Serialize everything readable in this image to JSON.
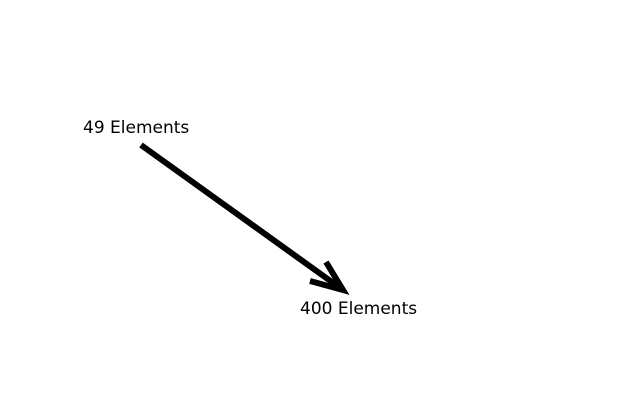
{
  "diagram": {
    "source_label": "49 Elements",
    "target_label": "400 Elements",
    "arrow_color": "#000000",
    "text_color": "#000000",
    "background_color": "#ffffff"
  }
}
